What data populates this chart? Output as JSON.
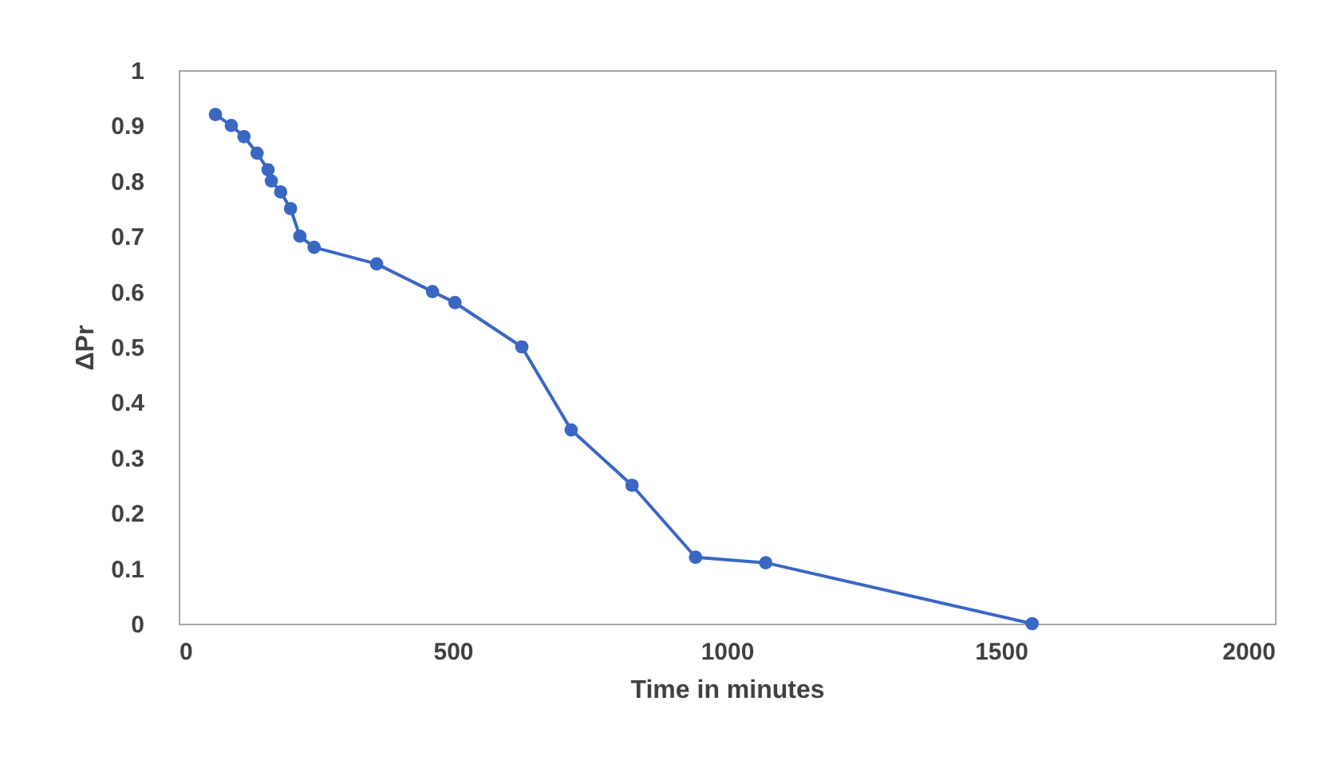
{
  "chart_data": {
    "type": "line",
    "xlabel": "Time in minutes",
    "ylabel": "ΔPr",
    "x": [
      67,
      96,
      119,
      143,
      163,
      169,
      186,
      204,
      221,
      247,
      361,
      463,
      504,
      626,
      716,
      827,
      943,
      1071,
      1557
    ],
    "series": [
      {
        "color": "#3a66c4",
        "values": [
          0.92,
          0.9,
          0.88,
          0.85,
          0.82,
          0.8,
          0.78,
          0.75,
          0.7,
          0.68,
          0.65,
          0.6,
          0.58,
          0.5,
          0.35,
          0.25,
          0.12,
          0.11,
          0
        ]
      }
    ],
    "xlim": [
      0,
      2000
    ],
    "xticks": [
      0,
      500,
      1000,
      1500,
      2000
    ],
    "ylim": [
      0,
      1
    ],
    "yticks": [
      0,
      0.1,
      0.2,
      0.3,
      0.4,
      0.5,
      0.6,
      0.7,
      0.8,
      0.9,
      1
    ],
    "marker": "circle",
    "line_style": "solid",
    "grid": false,
    "legend": false
  }
}
